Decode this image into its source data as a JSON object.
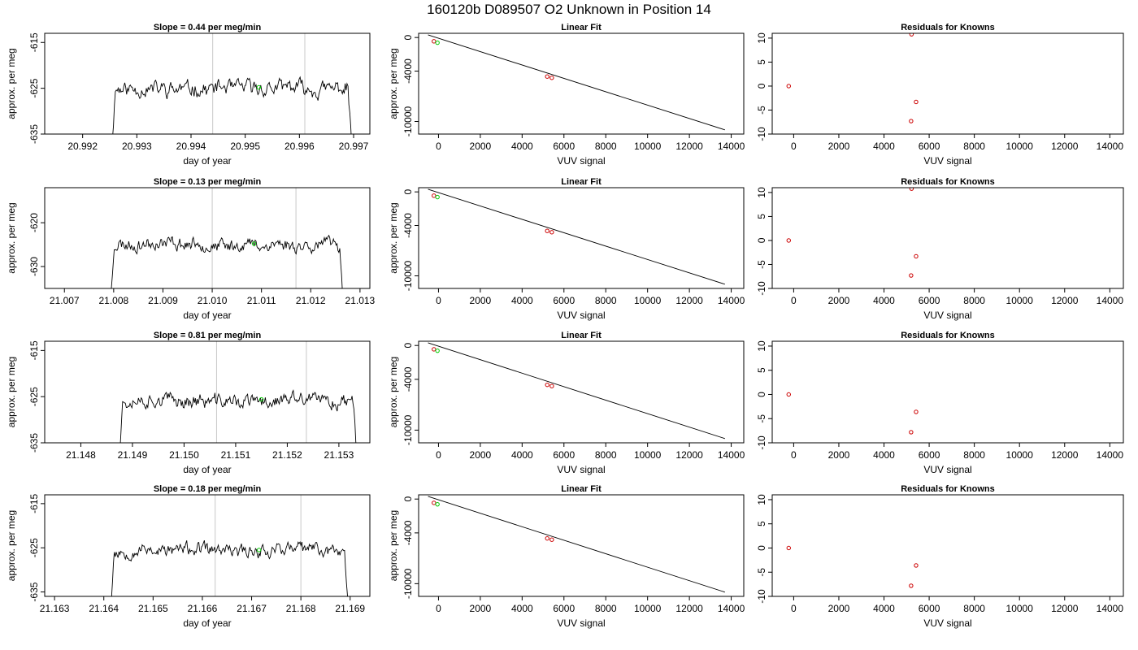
{
  "page_title": "160120b     D089507   O2 Unknown in Position  14",
  "chart_data": [
    {
      "row": 0,
      "type": "line",
      "title": "Slope =  0.44  per meg/min",
      "xlabel": "day of year",
      "ylabel": "approx. per meg",
      "xlim": [
        20.9913,
        20.9973
      ],
      "ylim": [
        -635,
        -613
      ],
      "xticks": [
        "20.992",
        "20.993",
        "20.994",
        "20.995",
        "20.996",
        "20.997"
      ],
      "yticks": [
        "-615",
        "-625",
        "-635"
      ],
      "ytick_values": [
        -615,
        -625,
        -635
      ],
      "xtick_values": [
        20.992,
        20.993,
        20.994,
        20.995,
        20.996,
        20.997
      ],
      "start": 20.9925,
      "end": 20.997,
      "level": -625,
      "noise": 1.7,
      "vlines": [
        20.9944,
        20.9961
      ],
      "mark": {
        "x": 20.99525,
        "y": -624.8
      },
      "seed": 11
    },
    {
      "row": 0,
      "type": "scatter",
      "title": "Linear Fit",
      "xlabel": "VUV signal",
      "ylabel": "approx. per meg",
      "xlim": [
        -950,
        14600
      ],
      "ylim": [
        -11500,
        500
      ],
      "xticks": [
        "0",
        "2000",
        "4000",
        "6000",
        "8000",
        "10000",
        "12000",
        "14000"
      ],
      "yticks": [
        "0",
        "-4000",
        "-10000"
      ],
      "xtick_values": [
        0,
        2000,
        4000,
        6000,
        8000,
        10000,
        12000,
        14000
      ],
      "ytick_values": [
        0,
        -4000,
        -10000
      ],
      "fit_line": {
        "x": [
          -500,
          13700
        ],
        "y": [
          310,
          -11000
        ]
      },
      "knowns": {
        "x": [
          -220,
          5200,
          5420
        ],
        "y": [
          -450,
          -4650,
          -4800
        ]
      },
      "unknown": {
        "x": [
          -50
        ],
        "y": [
          -620
        ]
      }
    },
    {
      "row": 0,
      "type": "scatter",
      "title": "Residuals for Knowns",
      "xlabel": "VUV signal",
      "ylabel": "",
      "xlim": [
        -950,
        14600
      ],
      "ylim": [
        -10,
        11
      ],
      "xticks": [
        "0",
        "2000",
        "4000",
        "6000",
        "8000",
        "10000",
        "12000",
        "14000"
      ],
      "yticks": [
        "10",
        "5",
        "0",
        "-5",
        "-10"
      ],
      "xtick_values": [
        0,
        2000,
        4000,
        6000,
        8000,
        10000,
        12000,
        14000
      ],
      "ytick_values": [
        10,
        5,
        0,
        -5,
        -10
      ],
      "residuals": {
        "x": [
          -220,
          5220,
          5200,
          5420
        ],
        "y": [
          0,
          10.8,
          -7.3,
          -3.3
        ]
      }
    },
    {
      "row": 1,
      "type": "line",
      "title": "Slope =  0.13  per meg/min",
      "xlabel": "day of year",
      "ylabel": "approx. per meg",
      "xlim": [
        21.0066,
        21.0132
      ],
      "ylim": [
        -635,
        -612
      ],
      "xticks": [
        "21.007",
        "21.008",
        "21.009",
        "21.010",
        "21.011",
        "21.012",
        "21.013"
      ],
      "yticks": [
        "-620",
        "-630"
      ],
      "ytick_values": [
        -620,
        -630
      ],
      "xtick_values": [
        21.007,
        21.008,
        21.009,
        21.01,
        21.011,
        21.012,
        21.013
      ],
      "start": 21.0079,
      "end": 21.0127,
      "level": -625,
      "noise": 1.5,
      "vlines": [
        21.01,
        21.0117
      ],
      "mark": {
        "x": 21.01085,
        "y": -624.8
      },
      "seed": 23
    },
    {
      "row": 1,
      "type": "scatter",
      "title": "Linear Fit",
      "xlabel": "VUV signal",
      "ylabel": "approx. per meg",
      "xlim": [
        -950,
        14600
      ],
      "ylim": [
        -11500,
        500
      ],
      "xticks": [
        "0",
        "2000",
        "4000",
        "6000",
        "8000",
        "10000",
        "12000",
        "14000"
      ],
      "yticks": [
        "0",
        "-4000",
        "-10000"
      ],
      "xtick_values": [
        0,
        2000,
        4000,
        6000,
        8000,
        10000,
        12000,
        14000
      ],
      "ytick_values": [
        0,
        -4000,
        -10000
      ],
      "fit_line": {
        "x": [
          -500,
          13700
        ],
        "y": [
          310,
          -11000
        ]
      },
      "knowns": {
        "x": [
          -220,
          5200,
          5420
        ],
        "y": [
          -450,
          -4650,
          -4800
        ]
      },
      "unknown": {
        "x": [
          -50
        ],
        "y": [
          -620
        ]
      }
    },
    {
      "row": 1,
      "type": "scatter",
      "title": "Residuals for Knowns",
      "xlabel": "VUV signal",
      "ylabel": "",
      "xlim": [
        -950,
        14600
      ],
      "ylim": [
        -10,
        11
      ],
      "xticks": [
        "0",
        "2000",
        "4000",
        "6000",
        "8000",
        "10000",
        "12000",
        "14000"
      ],
      "yticks": [
        "10",
        "5",
        "0",
        "-5",
        "-10"
      ],
      "xtick_values": [
        0,
        2000,
        4000,
        6000,
        8000,
        10000,
        12000,
        14000
      ],
      "ytick_values": [
        10,
        5,
        0,
        -5,
        -10
      ],
      "residuals": {
        "x": [
          -220,
          5220,
          5200,
          5420
        ],
        "y": [
          0,
          10.8,
          -7.3,
          -3.3
        ]
      }
    },
    {
      "row": 2,
      "type": "line",
      "title": "Slope =  0.81  per meg/min",
      "xlabel": "day of year",
      "ylabel": "approx. per meg",
      "xlim": [
        21.1473,
        21.1536
      ],
      "ylim": [
        -635,
        -613
      ],
      "xticks": [
        "21.148",
        "21.149",
        "21.150",
        "21.151",
        "21.152",
        "21.153"
      ],
      "yticks": [
        "-615",
        "-625",
        "-635"
      ],
      "ytick_values": [
        -615,
        -625,
        -635
      ],
      "xtick_values": [
        21.148,
        21.149,
        21.15,
        21.151,
        21.152,
        21.153
      ],
      "start": 21.1487,
      "end": 21.1534,
      "level": -626,
      "noise": 1.6,
      "vlines": [
        21.15063,
        21.15237
      ],
      "mark": {
        "x": 21.1515,
        "y": -625.6
      },
      "seed": 37
    },
    {
      "row": 2,
      "type": "scatter",
      "title": "Linear Fit",
      "xlabel": "VUV signal",
      "ylabel": "approx. per meg",
      "xlim": [
        -950,
        14600
      ],
      "ylim": [
        -11500,
        500
      ],
      "xticks": [
        "0",
        "2000",
        "4000",
        "6000",
        "8000",
        "10000",
        "12000",
        "14000"
      ],
      "yticks": [
        "0",
        "-4000",
        "-10000"
      ],
      "xtick_values": [
        0,
        2000,
        4000,
        6000,
        8000,
        10000,
        12000,
        14000
      ],
      "ytick_values": [
        0,
        -4000,
        -10000
      ],
      "fit_line": {
        "x": [
          -500,
          13700
        ],
        "y": [
          310,
          -11000
        ]
      },
      "knowns": {
        "x": [
          -220,
          5200,
          5420
        ],
        "y": [
          -450,
          -4650,
          -4800
        ]
      },
      "unknown": {
        "x": [
          -50
        ],
        "y": [
          -620
        ]
      }
    },
    {
      "row": 2,
      "type": "scatter",
      "title": "Residuals for Knowns",
      "xlabel": "VUV signal",
      "ylabel": "",
      "xlim": [
        -950,
        14600
      ],
      "ylim": [
        -10,
        11
      ],
      "xticks": [
        "0",
        "2000",
        "4000",
        "6000",
        "8000",
        "10000",
        "12000",
        "14000"
      ],
      "yticks": [
        "10",
        "5",
        "0",
        "-5",
        "-10"
      ],
      "xtick_values": [
        0,
        2000,
        4000,
        6000,
        8000,
        10000,
        12000,
        14000
      ],
      "ytick_values": [
        10,
        5,
        0,
        -5,
        -10
      ],
      "residuals": {
        "x": [
          -220,
          5200,
          5420
        ],
        "y": [
          0,
          -7.8,
          -3.6
        ]
      }
    },
    {
      "row": 3,
      "type": "line",
      "title": "Slope =  0.18  per meg/min",
      "xlabel": "day of year",
      "ylabel": "approx. per meg",
      "xlim": [
        21.1628,
        21.1694
      ],
      "ylim": [
        -636,
        -613
      ],
      "xticks": [
        "21.163",
        "21.164",
        "21.165",
        "21.166",
        "21.167",
        "21.168",
        "21.169"
      ],
      "yticks": [
        "-615",
        "-625",
        "-635"
      ],
      "ytick_values": [
        -615,
        -625,
        -635
      ],
      "xtick_values": [
        21.163,
        21.164,
        21.165,
        21.166,
        21.167,
        21.168,
        21.169
      ],
      "start": 21.1641,
      "end": 21.169,
      "level": -625.5,
      "noise": 1.5,
      "vlines": [
        21.16626,
        21.168
      ],
      "mark": {
        "x": 21.16715,
        "y": -625.5
      },
      "seed": 53
    },
    {
      "row": 3,
      "type": "scatter",
      "title": "Linear Fit",
      "xlabel": "VUV signal",
      "ylabel": "approx. per meg",
      "xlim": [
        -950,
        14600
      ],
      "ylim": [
        -11500,
        500
      ],
      "xticks": [
        "0",
        "2000",
        "4000",
        "6000",
        "8000",
        "10000",
        "12000",
        "14000"
      ],
      "yticks": [
        "0",
        "-4000",
        "-10000"
      ],
      "xtick_values": [
        0,
        2000,
        4000,
        6000,
        8000,
        10000,
        12000,
        14000
      ],
      "ytick_values": [
        0,
        -4000,
        -10000
      ],
      "fit_line": {
        "x": [
          -500,
          13700
        ],
        "y": [
          310,
          -11000
        ]
      },
      "knowns": {
        "x": [
          -220,
          5200,
          5420
        ],
        "y": [
          -450,
          -4650,
          -4800
        ]
      },
      "unknown": {
        "x": [
          -50
        ],
        "y": [
          -620
        ]
      }
    },
    {
      "row": 3,
      "type": "scatter",
      "title": "Residuals for Knowns",
      "xlabel": "VUV signal",
      "ylabel": "",
      "xlim": [
        -950,
        14600
      ],
      "ylim": [
        -10,
        11
      ],
      "xticks": [
        "0",
        "2000",
        "4000",
        "6000",
        "8000",
        "10000",
        "12000",
        "14000"
      ],
      "yticks": [
        "10",
        "5",
        "0",
        "-5",
        "-10"
      ],
      "xtick_values": [
        0,
        2000,
        4000,
        6000,
        8000,
        10000,
        12000,
        14000
      ],
      "ytick_values": [
        10,
        5,
        0,
        -5,
        -10
      ],
      "residuals": {
        "x": [
          -220,
          5200,
          5420
        ],
        "y": [
          0,
          -7.8,
          -3.6
        ]
      }
    }
  ],
  "colors": {
    "trace": "#000000",
    "fit_line": "#000000",
    "known_points": "#cc0000",
    "unknown_point": "#00cc00",
    "vline": "#c8c8c8",
    "frame": "#000000"
  }
}
